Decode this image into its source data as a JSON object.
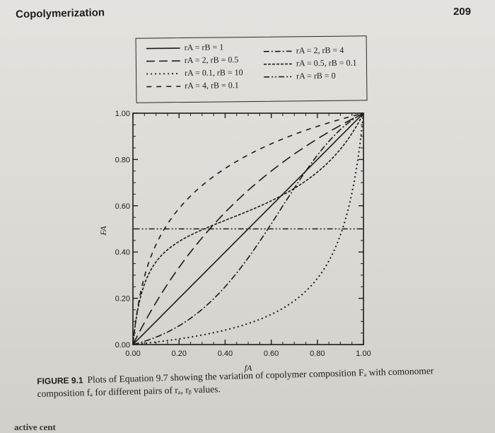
{
  "page": {
    "running_head": "Copolymerization",
    "page_number": "209",
    "bottom_text": "active cent",
    "caption_label": "FIGURE 9.1",
    "caption_text": "Plots of Equation 9.7 showing the variation of copolymer composition Fₐ with comonomer composition fₐ for different pairs of rₐ, rᵦ values."
  },
  "legend": [
    {
      "label": "rA = rB = 1",
      "dash": "solid"
    },
    {
      "label": "rA = 2, rB = 0.5",
      "dash": "long-dash"
    },
    {
      "label": "rA = 0.1, rB = 10",
      "dash": "dot"
    },
    {
      "label": "rA = 4, rB = 0.1",
      "dash": "dash-dash"
    },
    {
      "label": "rA = 2, rB = 4",
      "dash": "dash-dot"
    },
    {
      "label": "rA = 0.5, rB = 0.1",
      "dash": "short-dash"
    },
    {
      "label": "rA = rB = 0",
      "dash": "dash-dot-dot"
    }
  ],
  "chart_data": {
    "type": "line",
    "xlabel": "fA",
    "ylabel": "FA",
    "xlim": [
      0,
      1
    ],
    "ylim": [
      0,
      1
    ],
    "xticks": [
      "0.00",
      "0.20",
      "0.40",
      "0.60",
      "0.80",
      "1.00"
    ],
    "yticks": [
      "0.00",
      "0.20",
      "0.40",
      "0.60",
      "0.80",
      "1.00"
    ],
    "grid": false,
    "series": [
      {
        "name": "rA = rB = 1",
        "rA": 1,
        "rB": 1
      },
      {
        "name": "rA = 2, rB = 0.5",
        "rA": 2,
        "rB": 0.5
      },
      {
        "name": "rA = 0.1, rB = 10",
        "rA": 0.1,
        "rB": 10
      },
      {
        "name": "rA = 4, rB = 0.1",
        "rA": 4,
        "rB": 0.1
      },
      {
        "name": "rA = 2, rB = 4",
        "rA": 2,
        "rB": 4
      },
      {
        "name": "rA = 0.5, rB = 0.1",
        "rA": 0.5,
        "rB": 0.1
      },
      {
        "name": "rA = rB = 0",
        "rA": 0,
        "rB": 0
      }
    ]
  }
}
